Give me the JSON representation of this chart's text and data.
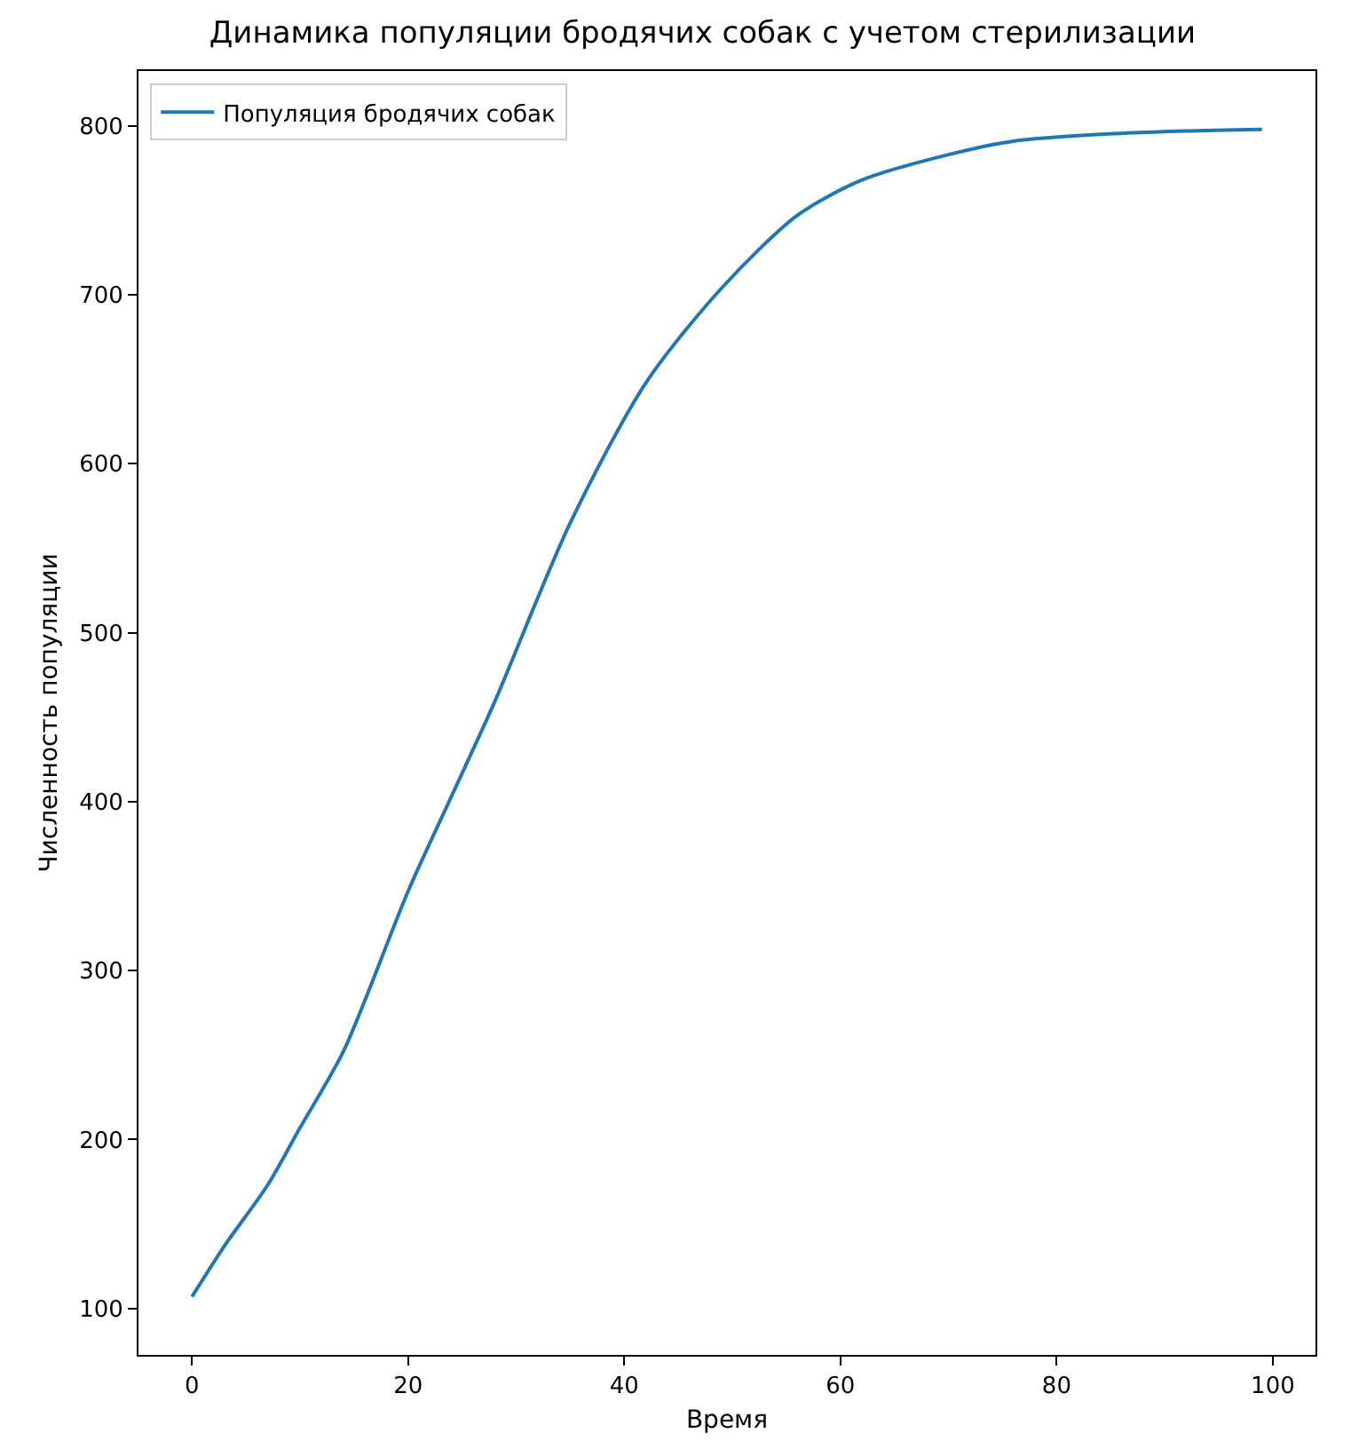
{
  "chart_data": {
    "type": "line",
    "title": "Динамика популяции бродячих собак с учетом стерилизации",
    "xlabel": "Время",
    "ylabel": "Численность популяции",
    "series": [
      {
        "name": "Популяция бродячих собак",
        "color": "#1f77b4",
        "x": [
          0,
          3,
          7,
          10,
          14,
          20,
          24,
          28,
          35,
          42,
          49,
          56,
          62,
          70,
          76,
          84,
          92,
          99
        ],
        "values": [
          107,
          137,
          173,
          207,
          252,
          347,
          403,
          459,
          565,
          648,
          704,
          747,
          768,
          783,
          791,
          795,
          797,
          798
        ]
      }
    ],
    "xlim": [
      -4.95,
      103.95
    ],
    "ylim": [
      72.5,
      832.5
    ],
    "xticks": [
      0,
      20,
      40,
      60,
      80,
      100
    ],
    "yticks": [
      100,
      200,
      300,
      400,
      500,
      600,
      700,
      800
    ],
    "legend": "top left",
    "marker": "none",
    "line_style": "solid"
  }
}
